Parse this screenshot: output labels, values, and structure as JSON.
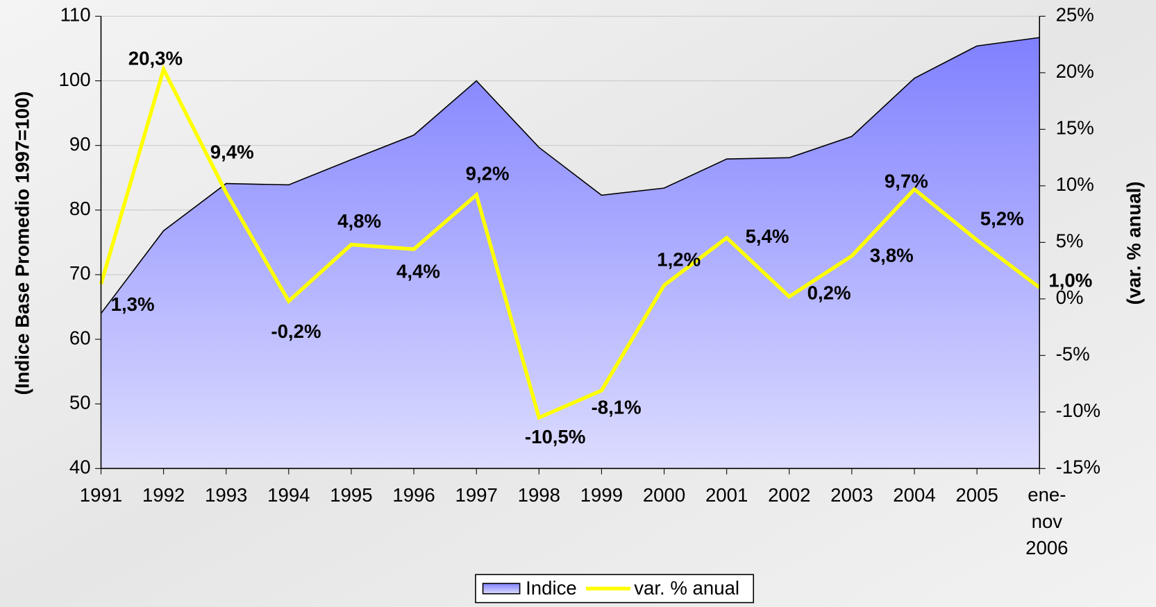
{
  "chart_data": {
    "type": "area_line",
    "categories": [
      "1991",
      "1992",
      "1993",
      "1994",
      "1995",
      "1996",
      "1997",
      "1998",
      "1999",
      "2000",
      "2001",
      "2002",
      "2003",
      "2004",
      "2005",
      "ene-nov 2006"
    ],
    "y_label": "(Indice Base Promedio 1997=100)",
    "y2_label": "(var. % anual)",
    "ylim": [
      40,
      110
    ],
    "yticks": [
      40,
      50,
      60,
      70,
      80,
      90,
      100,
      110
    ],
    "y2lim": [
      -15,
      25
    ],
    "y2ticks": [
      {
        "value": -15,
        "label": "-15%"
      },
      {
        "value": -10,
        "label": "-10%"
      },
      {
        "value": -5,
        "label": "-5%"
      },
      {
        "value": 0,
        "label": "0%"
      },
      {
        "value": 5,
        "label": "5%"
      },
      {
        "value": 10,
        "label": "10%"
      },
      {
        "value": 15,
        "label": "15%"
      },
      {
        "value": 20,
        "label": "20%"
      },
      {
        "value": 25,
        "label": "25%"
      }
    ],
    "series": [
      {
        "name": "Indice",
        "type": "area",
        "color": "#8080ff",
        "values": [
          64,
          76.8,
          84.1,
          83.9,
          87.8,
          91.6,
          100,
          89.7,
          82.3,
          83.4,
          87.9,
          88.1,
          91.4,
          100.4,
          105.4,
          106.7
        ]
      },
      {
        "name": "var. % anual",
        "type": "line",
        "axis": "y2",
        "color": "#ffff00",
        "values": [
          1.3,
          20.3,
          9.4,
          -0.2,
          4.8,
          4.4,
          9.2,
          -10.5,
          -8.1,
          1.2,
          5.4,
          0.2,
          3.8,
          9.7,
          5.2,
          1.0
        ],
        "value_labels": [
          "1,3%",
          "20,3%",
          "9,4%",
          "-0,2%",
          "4,8%",
          "4,4%",
          "9,2%",
          "-10,5%",
          "-8,1%",
          "1,2%",
          "5,4%",
          "0,2%",
          "3,8%",
          "9,7%",
          "5,2%",
          "1,0%"
        ]
      }
    ],
    "negative_color": "#ff0000"
  }
}
